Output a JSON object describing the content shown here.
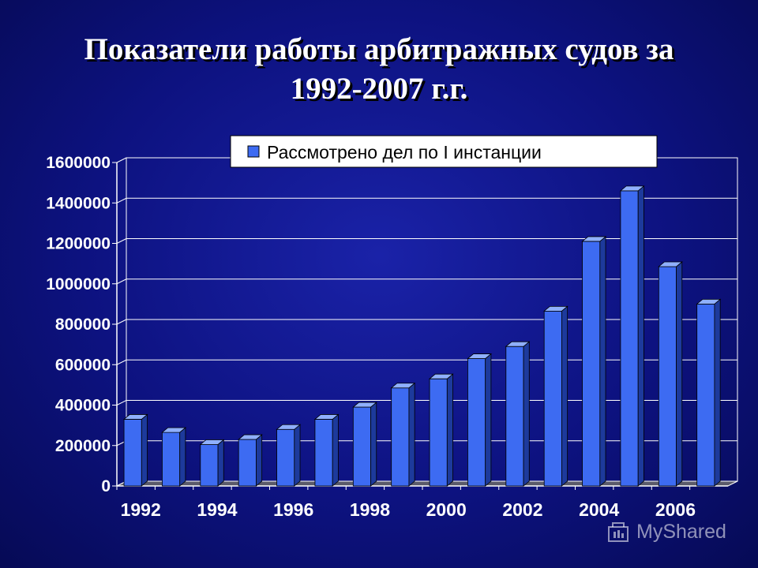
{
  "title_line1": "Показатели работы арбитражных судов за",
  "title_line2": "1992-2007 г.г.",
  "watermark": "MyShared",
  "colors": {
    "background": "#0d1280",
    "bar_front": "#3d6bf2",
    "bar_side": "#1d3a9c",
    "bar_top": "#8fb0ff",
    "grid": "#ffffff",
    "text": "#ffffff"
  },
  "chart_data": {
    "type": "bar",
    "title": "",
    "xlabel": "",
    "ylabel": "",
    "legend": {
      "position": "top",
      "entries": [
        "Рассмотрено дел по I инстанции"
      ]
    },
    "grid": true,
    "ylim": [
      0,
      1600000
    ],
    "yticks": [
      "0",
      "200000",
      "400000",
      "600000",
      "800000",
      "1000000",
      "1200000",
      "1400000",
      "1600000"
    ],
    "xtick_labels": [
      "1992",
      "1994",
      "1996",
      "1998",
      "2000",
      "2002",
      "2004",
      "2006"
    ],
    "categories": [
      "1992",
      "1993",
      "1994",
      "1995",
      "1996",
      "1997",
      "1998",
      "1999",
      "2000",
      "2001",
      "2002",
      "2003",
      "2004",
      "2005",
      "2006",
      "2007"
    ],
    "series": [
      {
        "name": "Рассмотрено дел по I инстанции",
        "values": [
          330000,
          265000,
          205000,
          230000,
          280000,
          330000,
          390000,
          485000,
          530000,
          630000,
          690000,
          865000,
          1210000,
          1460000,
          1085000,
          900000
        ]
      }
    ]
  }
}
